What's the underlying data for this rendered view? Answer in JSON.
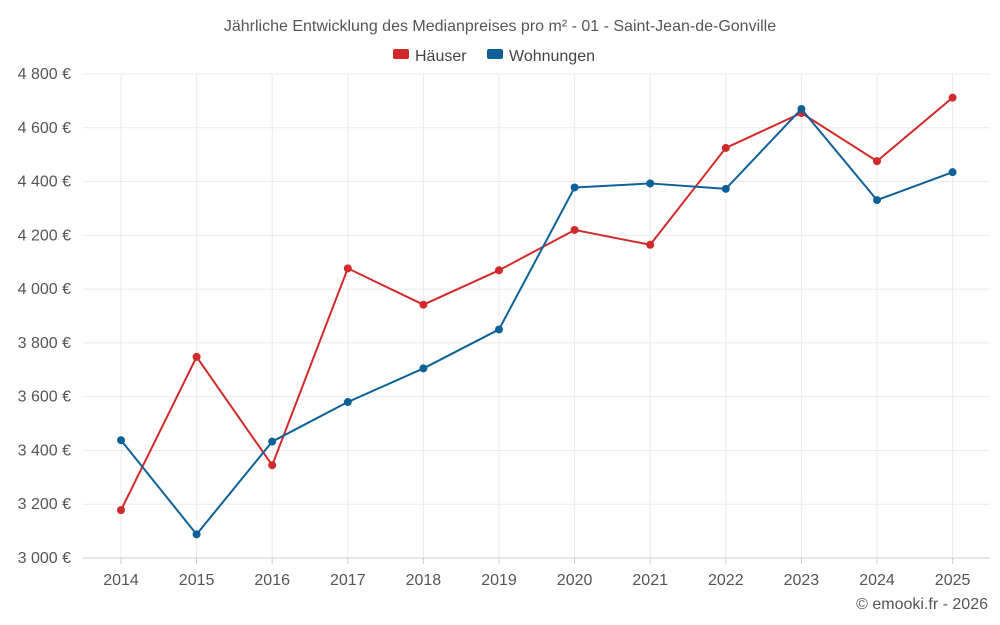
{
  "chart_data": {
    "type": "line",
    "title": "Jährliche Entwicklung des Medianpreises pro m² - 01 - Saint-Jean-de-Gonville",
    "categories": [
      "2014",
      "2015",
      "2016",
      "2017",
      "2018",
      "2019",
      "2020",
      "2021",
      "2022",
      "2023",
      "2024",
      "2025"
    ],
    "ylim": [
      3000,
      4800
    ],
    "yticks": [
      3000,
      3200,
      3400,
      3600,
      3800,
      4000,
      4200,
      4400,
      4600,
      4800
    ],
    "ytick_labels": [
      "3 000 €",
      "3 200 €",
      "3 400 €",
      "3 600 €",
      "3 800 €",
      "4 000 €",
      "4 200 €",
      "4 400 €",
      "4 600 €",
      "4 800 €"
    ],
    "grid": true,
    "legend_position": "top-center",
    "series": [
      {
        "name": "Häuser",
        "color": "#d22a2a",
        "values": [
          3178,
          3748,
          3345,
          4077,
          3942,
          4070,
          4220,
          4165,
          4525,
          4655,
          4476,
          4712
        ]
      },
      {
        "name": "Wohnungen",
        "color": "#0e6198",
        "values": [
          3438,
          3088,
          3433,
          3580,
          3705,
          3850,
          4378,
          4393,
          4373,
          4670,
          4331,
          4435
        ]
      }
    ]
  },
  "credit": "© emooki.fr - 2026"
}
